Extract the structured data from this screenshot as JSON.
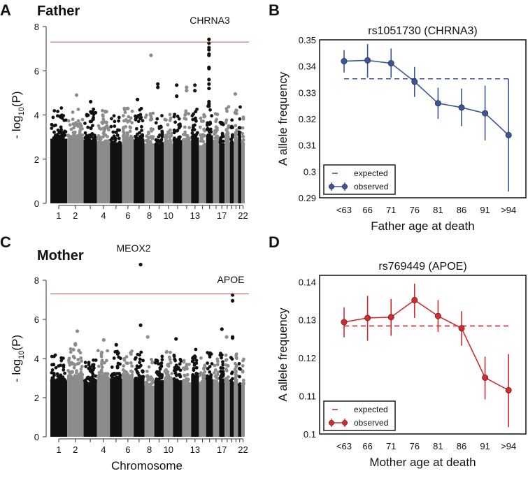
{
  "panels": {
    "A": {
      "letter": "A",
      "title": "Father"
    },
    "B": {
      "letter": "B"
    },
    "C": {
      "letter": "C",
      "title": "Mother"
    },
    "D": {
      "letter": "D"
    }
  },
  "colors": {
    "chr_odd": "#111111",
    "chr_even": "#8c8c8c",
    "threshold": "#c0504d",
    "father": "#3b5596",
    "mother": "#d42a2e"
  },
  "chart_data": [
    {
      "type": "scatter",
      "subtype": "manhattan",
      "title": "Father",
      "ylabel_prefix": "- log",
      "ylabel_sub": "10",
      "ylabel_suffix": "(P)",
      "xlabel": "",
      "ylim": [
        0,
        8
      ],
      "yticks": [
        "0",
        "2",
        "4",
        "6",
        "8"
      ],
      "xtick_labels": [
        "1",
        "2",
        "4",
        "6",
        "8",
        "10",
        "13",
        "17",
        "22"
      ],
      "threshold": 7.3,
      "annotations": [
        {
          "text": "CHRNA3",
          "chr": 15
        }
      ],
      "top_hits": [
        {
          "chr": 15,
          "values": [
            7.42,
            7.25,
            7.05,
            6.95,
            6.75,
            6.7,
            6.15,
            6.1,
            5.6,
            5.4,
            5.2,
            4.6,
            4.5,
            4.4
          ]
        },
        {
          "chr": 8,
          "values": [
            6.7
          ]
        },
        {
          "chr": 9,
          "values": [
            5.25,
            5.4
          ]
        },
        {
          "chr": 11,
          "values": [
            5.35,
            4.85
          ]
        },
        {
          "chr": 12,
          "values": [
            5.25,
            5.1
          ]
        },
        {
          "chr": 13,
          "values": [
            5.1,
            5.35
          ]
        },
        {
          "chr": 2,
          "values": [
            4.9
          ]
        },
        {
          "chr": 20,
          "values": [
            4.95
          ]
        },
        {
          "chr": 7,
          "values": [
            4.7
          ]
        },
        {
          "chr": 3,
          "values": [
            4.6
          ]
        }
      ]
    },
    {
      "type": "line",
      "title": "rs1051730 (CHRNA3)",
      "xlabel": "Father age at death",
      "ylabel": "A allele frequency",
      "categories": [
        "<63",
        "66",
        "71",
        "76",
        "81",
        "86",
        "91",
        ">94"
      ],
      "ylim": [
        0.29,
        0.35
      ],
      "yticks": [
        "0.29",
        "0.3",
        "0.31",
        "0.32",
        "0.33",
        "0.34",
        "0.35"
      ],
      "series": [
        {
          "name": "observed",
          "values": [
            0.3419,
            0.3422,
            0.3411,
            0.3341,
            0.3259,
            0.3243,
            0.3221,
            0.3138
          ],
          "ci_low": [
            0.3376,
            0.3356,
            0.3356,
            0.3283,
            0.32,
            0.3172,
            0.3118,
            0.2924
          ],
          "ci_high": [
            0.3461,
            0.3484,
            0.3467,
            0.3397,
            0.3318,
            0.3315,
            0.3326,
            0.3352
          ]
        },
        {
          "name": "expected",
          "value": 0.3352
        }
      ],
      "legend": "bottom-left"
    },
    {
      "type": "scatter",
      "subtype": "manhattan",
      "title": "Mother",
      "ylabel_prefix": "- log",
      "ylabel_sub": "10",
      "ylabel_suffix": "(P)",
      "xlabel": "Chromosome",
      "ylim": [
        0,
        8
      ],
      "yticks": [
        "0",
        "2",
        "4",
        "6",
        "8"
      ],
      "xtick_labels": [
        "1",
        "2",
        "4",
        "6",
        "8",
        "10",
        "13",
        "17",
        "22"
      ],
      "threshold": 7.3,
      "annotations": [
        {
          "text": "MEOX2",
          "chr": 7
        },
        {
          "text": "APOE",
          "chr": 19
        }
      ],
      "top_hits": [
        {
          "chr": 7,
          "values": [
            8.8,
            5.7
          ]
        },
        {
          "chr": 19,
          "values": [
            7.25,
            6.95,
            5.1,
            5.05
          ]
        },
        {
          "chr": 17,
          "values": [
            5.5
          ]
        },
        {
          "chr": 2,
          "values": [
            5.4
          ]
        },
        {
          "chr": 4,
          "values": [
            4.95
          ]
        },
        {
          "chr": 11,
          "values": [
            5.0
          ]
        },
        {
          "chr": 8,
          "values": [
            5.1
          ]
        },
        {
          "chr": 5,
          "values": [
            4.7
          ]
        },
        {
          "chr": 2,
          "values": [
            4.75,
            4.7
          ]
        },
        {
          "chr": 18,
          "values": [
            5.1
          ]
        }
      ]
    },
    {
      "type": "line",
      "title": "rs769449 (APOE)",
      "xlabel": "Mother age at death",
      "ylabel": "A allele frequency",
      "categories": [
        "<63",
        "66",
        "71",
        "76",
        "81",
        "86",
        "91",
        ">94"
      ],
      "ylim": [
        0.1,
        0.1417
      ],
      "yticks": [
        "0.1",
        "0.11",
        "0.12",
        "0.13",
        "0.14"
      ],
      "series": [
        {
          "name": "observed",
          "values": [
            0.1294,
            0.1305,
            0.1307,
            0.1352,
            0.131,
            0.1278,
            0.1148,
            0.1115
          ],
          "ci_low": [
            0.1254,
            0.1245,
            0.1258,
            0.1305,
            0.1268,
            0.1232,
            0.1091,
            0.1018
          ],
          "ci_high": [
            0.1333,
            0.1363,
            0.1355,
            0.1395,
            0.1352,
            0.1323,
            0.1203,
            0.121
          ]
        },
        {
          "name": "expected",
          "value": 0.1284
        }
      ],
      "legend": "bottom-left"
    }
  ]
}
